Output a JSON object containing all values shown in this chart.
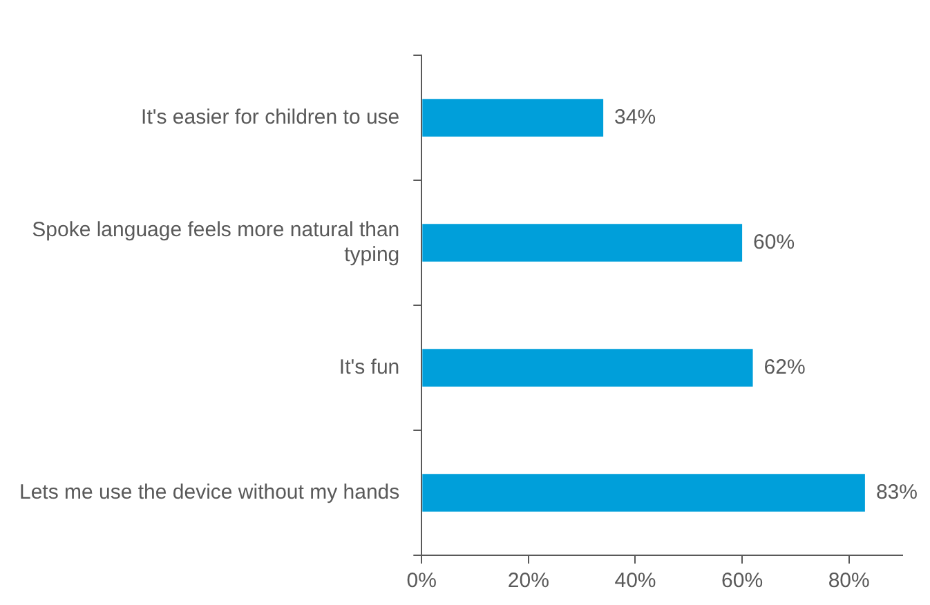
{
  "chart_data": {
    "type": "bar",
    "orientation": "horizontal",
    "categories": [
      "It's easier for children to use",
      "Spoke language feels more natural than typing",
      "It's fun",
      "Lets me use the device without my hands"
    ],
    "values": [
      34,
      60,
      62,
      83
    ],
    "color": "#009fda",
    "value_labels": [
      "34%",
      "60%",
      "62%",
      "83%"
    ],
    "xlim": [
      0,
      90
    ],
    "xticks": [
      {
        "value": 0,
        "label": "0%"
      },
      {
        "value": 20,
        "label": "20%"
      },
      {
        "value": 40,
        "label": "40%"
      },
      {
        "value": 60,
        "label": "60%"
      },
      {
        "value": 80,
        "label": "80%"
      }
    ],
    "grid": false,
    "legend": false
  }
}
